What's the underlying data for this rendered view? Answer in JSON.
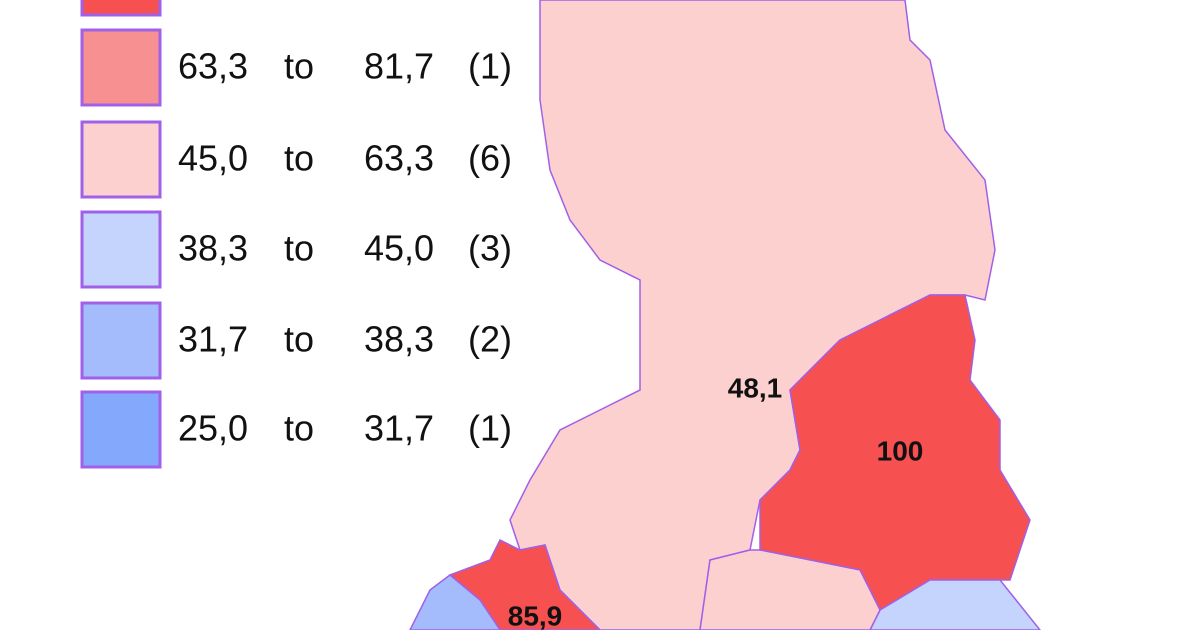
{
  "legend": {
    "rows": [
      {
        "from": "63,3",
        "word": "to",
        "to": "81,7",
        "count": "(1)"
      },
      {
        "from": "45,0",
        "word": "to",
        "to": "63,3",
        "count": "(6)"
      },
      {
        "from": "38,3",
        "word": "to",
        "to": "45,0",
        "count": "(3)"
      },
      {
        "from": "31,7",
        "word": "to",
        "to": "38,3",
        "count": "(2)"
      },
      {
        "from": "25,0",
        "word": "to",
        "to": "31,7",
        "count": "(1)"
      }
    ]
  },
  "regions": [
    {
      "label": "48,1"
    },
    {
      "label": "100"
    },
    {
      "label": "85,9"
    }
  ]
}
